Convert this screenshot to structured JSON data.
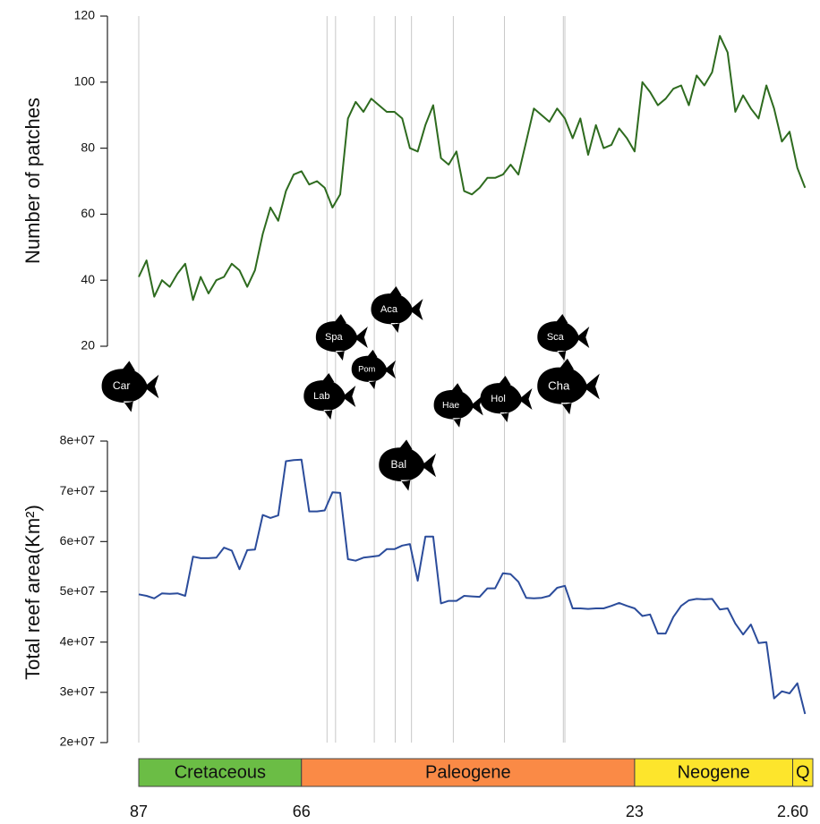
{
  "chart_data": {
    "type": "line",
    "ylabel": "Number of patches",
    "y2label": "Total reef area(Km²)",
    "xlim": [
      87,
      0
    ],
    "xticks": [
      87,
      66,
      23,
      {
        "value": 2.6,
        "label": "2.60"
      }
    ],
    "ylim": [
      20,
      120
    ],
    "yticks": [
      20,
      40,
      60,
      80,
      100,
      120
    ],
    "y2lim": [
      20000000.0,
      80000000.0
    ],
    "y2ticks": [
      {
        "value": 20000000.0,
        "label": "2e+07"
      },
      {
        "value": 30000000.0,
        "label": "3e+07"
      },
      {
        "value": 40000000.0,
        "label": "4e+07"
      },
      {
        "value": 50000000.0,
        "label": "5e+07"
      },
      {
        "value": 60000000.0,
        "label": "6e+07"
      },
      {
        "value": 70000000.0,
        "label": "7e+07"
      },
      {
        "value": 80000000.0,
        "label": "8e+07"
      }
    ],
    "x": [
      87,
      86,
      85,
      84,
      83,
      82,
      81,
      80,
      79,
      78,
      77,
      76,
      75,
      74,
      73,
      72,
      71,
      70,
      69,
      68,
      67,
      66,
      65,
      64,
      63,
      62,
      61,
      60,
      59,
      58,
      57,
      56,
      55,
      54,
      53,
      52,
      51,
      50,
      49,
      48,
      47,
      46,
      45,
      44,
      43,
      42,
      41,
      40,
      39,
      38,
      37,
      36,
      35,
      34,
      33,
      32,
      31,
      30,
      29,
      28,
      27,
      26,
      25,
      24,
      23,
      22,
      21,
      20,
      19,
      18,
      17,
      16,
      15,
      14,
      13,
      12,
      11,
      10,
      9,
      8,
      7,
      6,
      5,
      4,
      3,
      2,
      1
    ],
    "series": [
      {
        "color": "#2e6b1f",
        "axis": "y",
        "values": [
          41,
          46,
          35,
          40,
          38,
          42,
          45,
          34,
          41,
          36,
          40,
          41,
          45,
          43,
          38,
          43,
          54,
          62,
          58,
          67,
          72,
          73,
          69,
          70,
          68,
          62,
          66,
          89,
          94,
          91,
          95,
          93,
          91,
          91,
          89,
          80,
          79,
          87,
          93,
          77,
          75,
          79,
          67,
          66,
          68,
          71,
          71,
          72,
          75,
          72,
          82,
          92,
          90,
          88,
          92,
          89,
          83,
          89,
          78,
          87,
          80,
          81,
          86,
          83,
          79,
          100,
          97,
          93,
          95,
          98,
          99,
          93,
          102,
          99,
          103,
          114,
          109,
          91,
          96,
          92,
          89,
          99,
          92,
          82,
          85,
          74,
          68
        ]
      },
      {
        "color": "#2b4c9b",
        "axis": "y2",
        "values": [
          49500000.0,
          49200000.0,
          48700000.0,
          49700000.0,
          49600000.0,
          49700000.0,
          49200000.0,
          57000000.0,
          56700000.0,
          56700000.0,
          56800000.0,
          58800000.0,
          58200000.0,
          54500000.0,
          58300000.0,
          58400000.0,
          65300000.0,
          64700000.0,
          65200000.0,
          76000000.0,
          76200000.0,
          76300000.0,
          66000000.0,
          66000000.0,
          66200000.0,
          69800000.0,
          69700000.0,
          56500000.0,
          56200000.0,
          56800000.0,
          57000000.0,
          57200000.0,
          58500000.0,
          58500000.0,
          59200000.0,
          59500000.0,
          52200000.0,
          61000000.0,
          61000000.0,
          47700000.0,
          48200000.0,
          48200000.0,
          49200000.0,
          49100000.0,
          49000000.0,
          50700000.0,
          50700000.0,
          53700000.0,
          53500000.0,
          52000000.0,
          48800000.0,
          48700000.0,
          48800000.0,
          49200000.0,
          50800000.0,
          51200000.0,
          46700000.0,
          46700000.0,
          46600000.0,
          46700000.0,
          46700000.0,
          47200000.0,
          47800000.0,
          47200000.0,
          46700000.0,
          45200000.0,
          45500000.0,
          41700000.0,
          41700000.0,
          45000000.0,
          47200000.0,
          48300000.0,
          48600000.0,
          48500000.0,
          48600000.0,
          46500000.0,
          46700000.0,
          43700000.0,
          41500000.0,
          43500000.0,
          39800000.0,
          40000000.0,
          28800000.0,
          30200000.0,
          29800000.0,
          31800000.0,
          25700000.0
        ]
      }
    ],
    "periods": [
      {
        "name": "Cretaceous",
        "start": 87,
        "end": 66,
        "color": "#6bbd45"
      },
      {
        "name": "Paleogene",
        "start": 66,
        "end": 23,
        "color": "#fa8a46"
      },
      {
        "name": "Neogene",
        "start": 23,
        "end": 2.6,
        "color": "#fde52c"
      },
      {
        "name": "Q",
        "start": 2.6,
        "end": 0,
        "color": "#fde52c"
      }
    ],
    "events": [
      {
        "label": "Car",
        "age": 87
      },
      {
        "label": "Lab",
        "age": 62.7
      },
      {
        "label": "Spa",
        "age": 61.6
      },
      {
        "label": "Pom",
        "age": 56.6
      },
      {
        "label": "Aca",
        "age": 53.9
      },
      {
        "label": "Bal",
        "age": 51.8
      },
      {
        "label": "Hae",
        "age": 46.4
      },
      {
        "label": "Hol",
        "age": 39.8
      },
      {
        "label": "Sca",
        "age": 32.2
      },
      {
        "label": "Cha",
        "age": 32.0
      }
    ]
  }
}
